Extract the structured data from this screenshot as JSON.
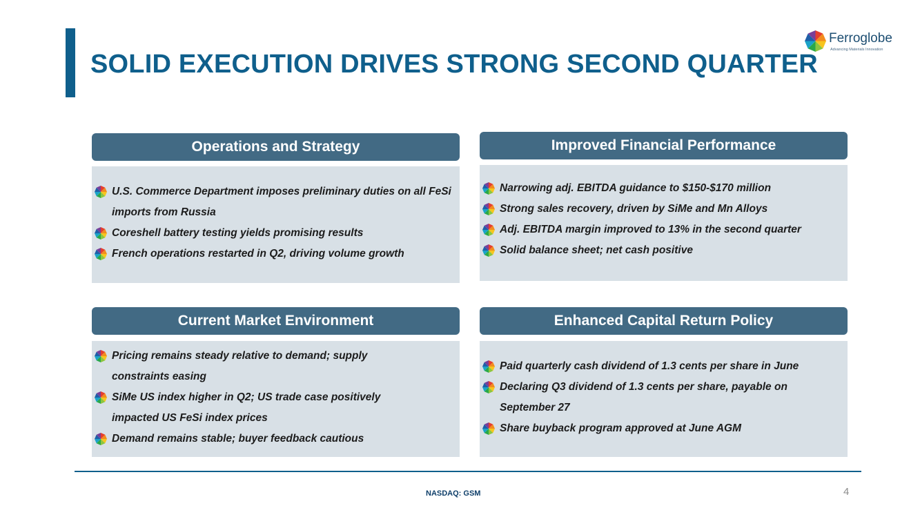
{
  "slide": {
    "title": "SOLID EXECUTION DRIVES STRONG SECOND QUARTER",
    "logo_name": "Ferroglobe",
    "logo_tagline": "Advancing Materials Innovation",
    "footer": "NASDAQ: GSM",
    "page_number": "4"
  },
  "panels": {
    "operations": {
      "header": "Operations and Strategy",
      "items": [
        "U.S. Commerce Department imposes preliminary duties on all FeSi imports from Russia",
        "Coreshell battery testing yields promising results",
        "French operations restarted in Q2, driving volume growth"
      ]
    },
    "financial": {
      "header": "Improved Financial Performance",
      "items": [
        "Narrowing adj. EBITDA guidance to $150-$170 million",
        "Strong sales recovery, driven by SiMe and Mn Alloys",
        "Adj. EBITDA margin improved to 13% in the second quarter",
        "Solid balance sheet; net cash positive"
      ]
    },
    "market": {
      "header": "Current Market Environment",
      "items": [
        "Pricing remains steady relative to demand; supply constraints easing",
        "SiMe US index higher in Q2; US trade case positively impacted US FeSi index prices",
        "Demand remains stable; buyer feedback cautious"
      ]
    },
    "capital": {
      "header": "Enhanced Capital Return Policy",
      "items": [
        "Paid quarterly cash dividend of 1.3 cents per share in June",
        "Declaring Q3 dividend of 1.3 cents per share, payable on September 27",
        "Share buyback program approved at June AGM"
      ]
    }
  },
  "colors": {
    "title": "#0f5f8c",
    "header_bg": "#426a84",
    "body_bg": "#d8e0e6"
  },
  "icons": {
    "logo": "ferroglobe-logo-icon",
    "bullet": "ferroglobe-bullet-icon"
  }
}
